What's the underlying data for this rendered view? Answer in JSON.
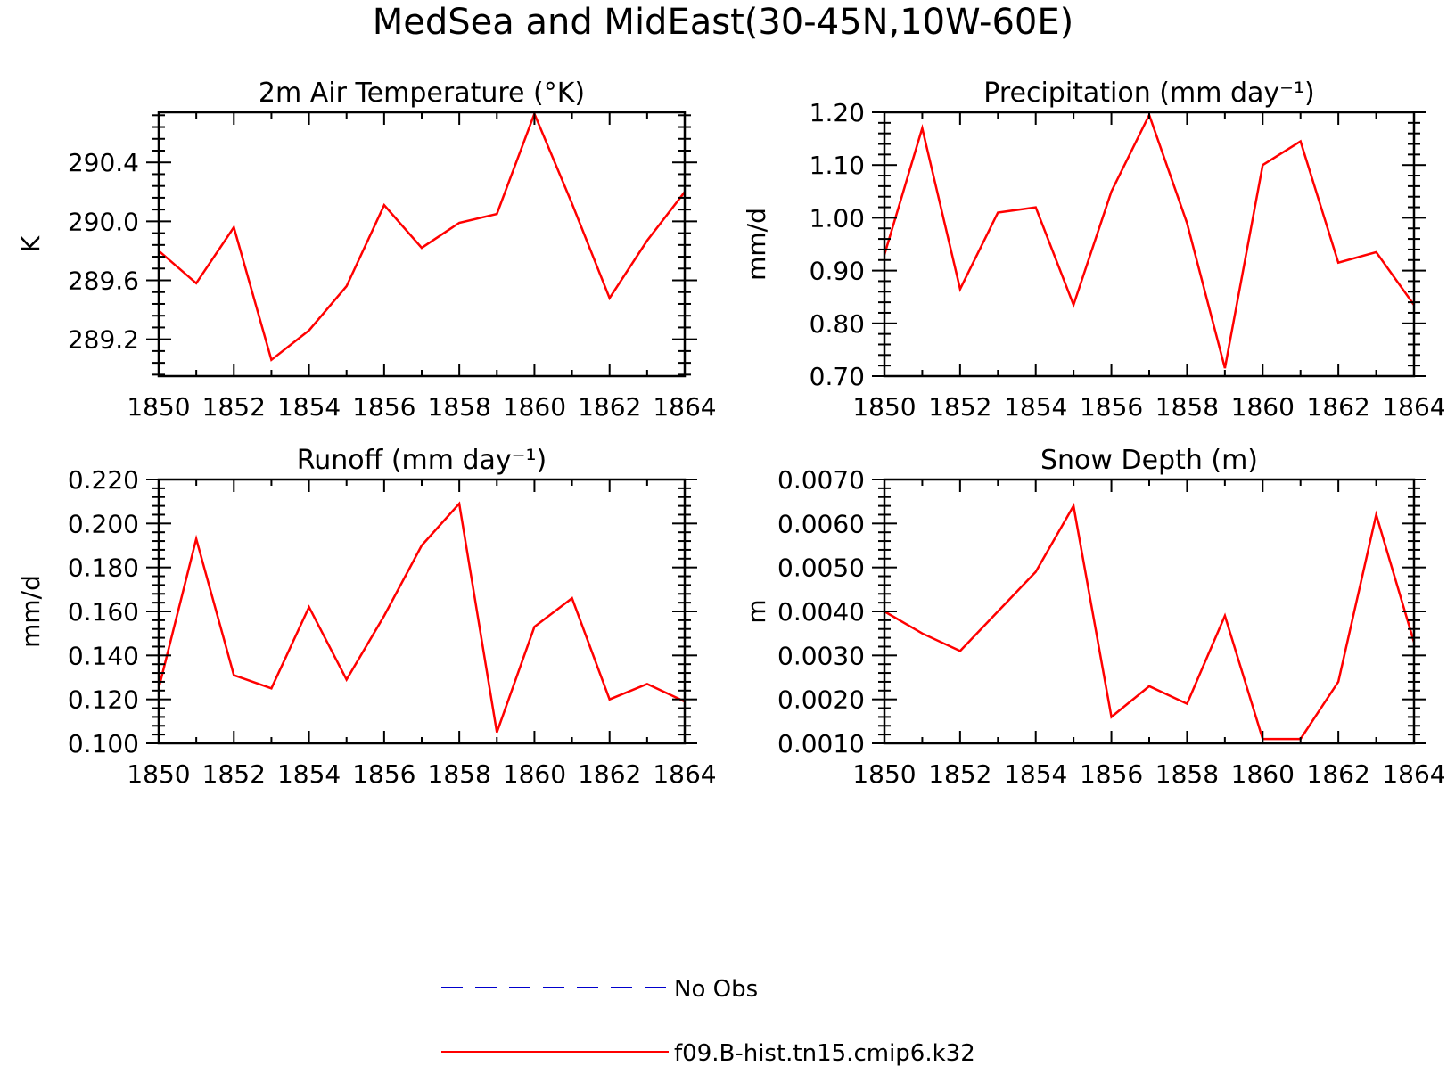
{
  "title": "MedSea and MidEast(30-45N,10W-60E)",
  "colors": {
    "model": "#ff0000",
    "obs": "#0000cc",
    "axis": "#000000"
  },
  "legend": {
    "entries": [
      {
        "label": "No Obs",
        "style": "dashed",
        "color": "#0000cc"
      },
      {
        "label": "f09.B-hist.tn15.cmip6.k32",
        "style": "solid",
        "color": "#ff0000"
      }
    ]
  },
  "chart_data": [
    {
      "type": "line",
      "title": "2m Air Temperature (°K)",
      "xlabel": "",
      "ylabel": "K",
      "xlim": [
        1850,
        1864
      ],
      "ylim": [
        288.95,
        290.74
      ],
      "xticks": [
        1850,
        1852,
        1854,
        1856,
        1858,
        1860,
        1862,
        1864
      ],
      "yticks": [
        289.2,
        289.6,
        290.0,
        290.4
      ],
      "ytick_labels": [
        "289.2",
        "289.6",
        "290.0",
        "290.4"
      ],
      "x": [
        1850,
        1851,
        1852,
        1853,
        1854,
        1855,
        1856,
        1857,
        1858,
        1859,
        1860,
        1861,
        1862,
        1863,
        1864
      ],
      "series": [
        {
          "name": "f09.B-hist.tn15.cmip6.k32",
          "values": [
            289.8,
            289.58,
            289.96,
            289.06,
            289.26,
            289.56,
            290.11,
            289.82,
            289.99,
            290.05,
            290.73,
            290.12,
            289.48,
            289.87,
            290.2
          ]
        }
      ]
    },
    {
      "type": "line",
      "title": "Precipitation (mm day⁻¹)",
      "xlabel": "",
      "ylabel": "mm/d",
      "xlim": [
        1850,
        1864
      ],
      "ylim": [
        0.7,
        1.2
      ],
      "xticks": [
        1850,
        1852,
        1854,
        1856,
        1858,
        1860,
        1862,
        1864
      ],
      "yticks": [
        0.7,
        0.8,
        0.9,
        1.0,
        1.1,
        1.2
      ],
      "ytick_labels": [
        "0.70",
        "0.80",
        "0.90",
        "1.00",
        "1.10",
        "1.20"
      ],
      "x": [
        1850,
        1851,
        1852,
        1853,
        1854,
        1855,
        1856,
        1857,
        1858,
        1859,
        1860,
        1861,
        1862,
        1863,
        1864
      ],
      "series": [
        {
          "name": "f09.B-hist.tn15.cmip6.k32",
          "values": [
            0.93,
            1.17,
            0.865,
            1.01,
            1.02,
            0.835,
            1.05,
            1.195,
            0.99,
            0.715,
            1.1,
            1.145,
            0.915,
            0.935,
            0.835
          ]
        }
      ]
    },
    {
      "type": "line",
      "title": "Runoff (mm day⁻¹)",
      "xlabel": "",
      "ylabel": "mm/d",
      "xlim": [
        1850,
        1864
      ],
      "ylim": [
        0.1,
        0.22
      ],
      "xticks": [
        1850,
        1852,
        1854,
        1856,
        1858,
        1860,
        1862,
        1864
      ],
      "yticks": [
        0.1,
        0.12,
        0.14,
        0.16,
        0.18,
        0.2,
        0.22
      ],
      "ytick_labels": [
        "0.100",
        "0.120",
        "0.140",
        "0.160",
        "0.180",
        "0.200",
        "0.220"
      ],
      "x": [
        1850,
        1851,
        1852,
        1853,
        1854,
        1855,
        1856,
        1857,
        1858,
        1859,
        1860,
        1861,
        1862,
        1863,
        1864
      ],
      "series": [
        {
          "name": "f09.B-hist.tn15.cmip6.k32",
          "values": [
            0.125,
            0.193,
            0.131,
            0.125,
            0.162,
            0.129,
            0.158,
            0.19,
            0.209,
            0.105,
            0.153,
            0.166,
            0.12,
            0.127,
            0.119
          ]
        }
      ]
    },
    {
      "type": "line",
      "title": "Snow Depth (m)",
      "xlabel": "",
      "ylabel": "m",
      "xlim": [
        1850,
        1864
      ],
      "ylim": [
        0.001,
        0.007
      ],
      "xticks": [
        1850,
        1852,
        1854,
        1856,
        1858,
        1860,
        1862,
        1864
      ],
      "yticks": [
        0.001,
        0.002,
        0.003,
        0.004,
        0.005,
        0.006,
        0.007
      ],
      "ytick_labels": [
        "0.0010",
        "0.0020",
        "0.0030",
        "0.0040",
        "0.0050",
        "0.0060",
        "0.0070"
      ],
      "x": [
        1850,
        1851,
        1852,
        1853,
        1854,
        1855,
        1856,
        1857,
        1858,
        1859,
        1860,
        1861,
        1862,
        1863,
        1864
      ],
      "series": [
        {
          "name": "f09.B-hist.tn15.cmip6.k32",
          "values": [
            0.004,
            0.0035,
            0.0031,
            0.004,
            0.0049,
            0.0064,
            0.0016,
            0.0023,
            0.0019,
            0.0039,
            0.0011,
            0.0011,
            0.0024,
            0.0062,
            0.0033
          ]
        }
      ]
    }
  ]
}
